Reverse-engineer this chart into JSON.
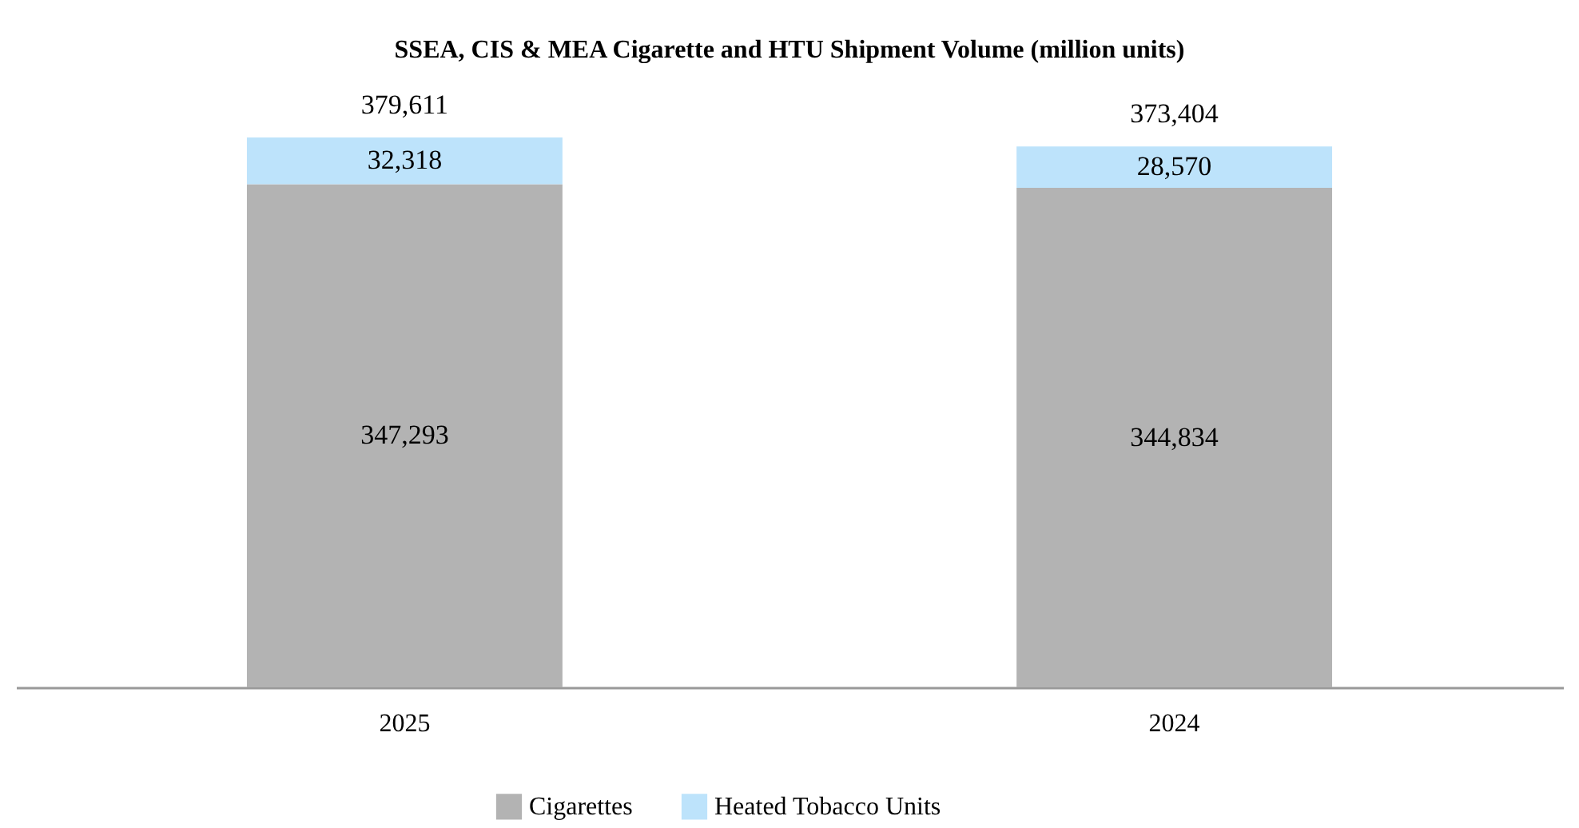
{
  "chart_data": {
    "type": "bar",
    "title": "SSEA, CIS & MEA Cigarette and HTU Shipment Volume (million units)",
    "categories": [
      "2025",
      "2024"
    ],
    "stacked": true,
    "totals": [
      "379,611",
      "373,404"
    ],
    "legend": "bottom",
    "series": [
      {
        "name": "Cigarettes",
        "color": "#b3b3b3",
        "values": [
          347293,
          344834
        ],
        "value_labels": [
          "347,293",
          "344,834"
        ]
      },
      {
        "name": "Heated Tobacco Units",
        "color": "#bde3fb",
        "values": [
          32318,
          28570
        ],
        "value_labels": [
          "32,318",
          "28,570"
        ]
      }
    ]
  }
}
